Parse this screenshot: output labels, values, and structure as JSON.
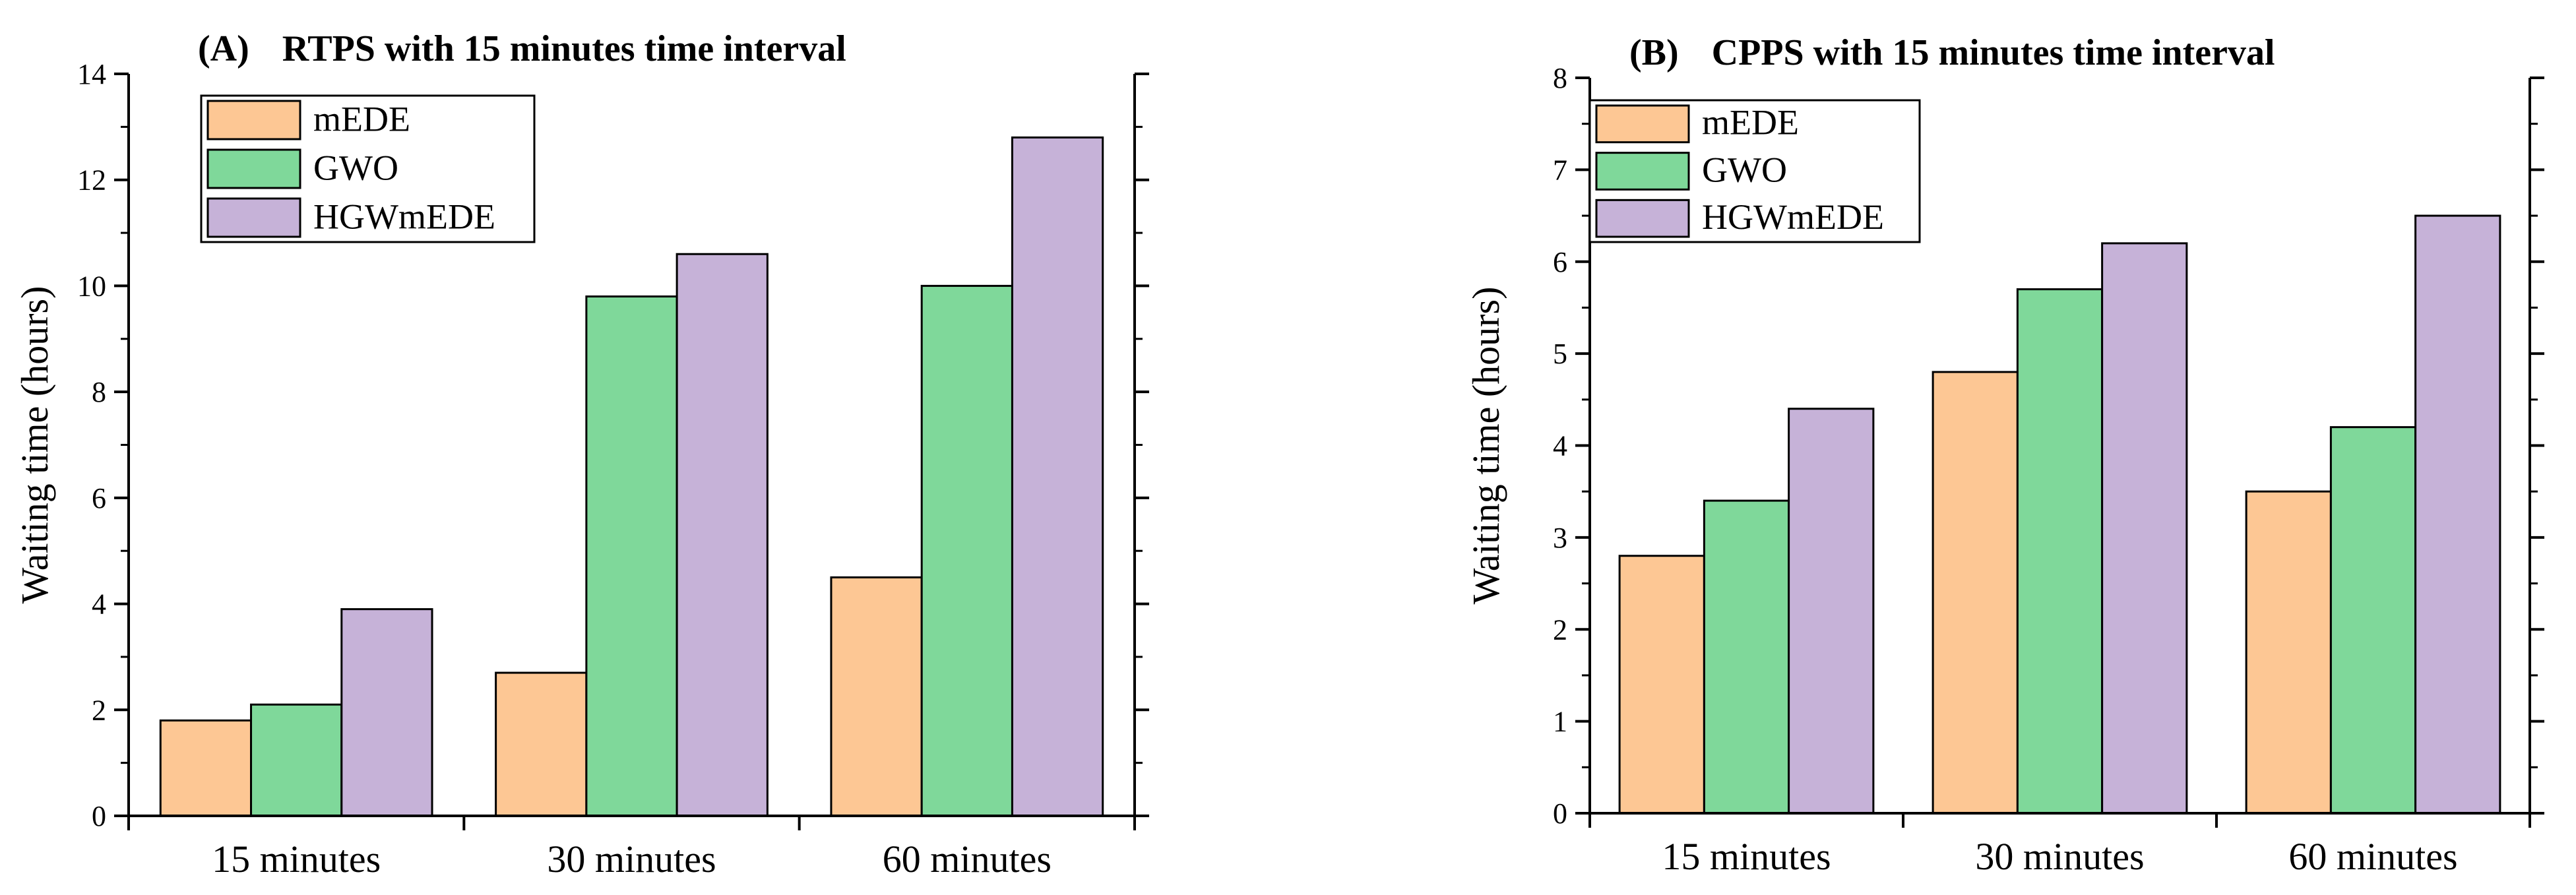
{
  "colors": {
    "mEDE": "#fdc794",
    "GWO": "#7fd89a",
    "HGWmEDE": "#c6b2d8",
    "stroke": "#000000"
  },
  "chart_data": [
    {
      "type": "bar",
      "panel": "(A)",
      "title": "RTPS with 15 minutes time interval",
      "xlabel": "",
      "ylabel": "Waiting time (hours)",
      "categories": [
        "15 minutes",
        "30 minutes",
        "60 minutes"
      ],
      "series": [
        {
          "name": "mEDE",
          "values": [
            1.8,
            2.7,
            4.5
          ]
        },
        {
          "name": "GWO",
          "values": [
            2.1,
            9.8,
            10.0
          ]
        },
        {
          "name": "HGWmEDE",
          "values": [
            3.9,
            10.6,
            12.8
          ]
        }
      ],
      "ylim": [
        0,
        14
      ],
      "yticks": [
        0,
        2,
        4,
        6,
        8,
        10,
        12,
        14
      ],
      "legend_position": "top-left",
      "grid": false
    },
    {
      "type": "bar",
      "panel": "(B)",
      "title": "CPPS with 15 minutes time interval",
      "xlabel": "",
      "ylabel": "Waiting time (hours)",
      "categories": [
        "15 minutes",
        "30 minutes",
        "60 minutes"
      ],
      "series": [
        {
          "name": "mEDE",
          "values": [
            2.8,
            4.8,
            3.5
          ]
        },
        {
          "name": "GWO",
          "values": [
            3.4,
            5.7,
            4.2
          ]
        },
        {
          "name": "HGWmEDE",
          "values": [
            4.4,
            6.2,
            6.5
          ]
        }
      ],
      "ylim": [
        0,
        8
      ],
      "yticks": [
        0,
        1,
        2,
        3,
        4,
        5,
        6,
        7,
        8
      ],
      "legend_position": "top-left",
      "grid": false
    }
  ]
}
